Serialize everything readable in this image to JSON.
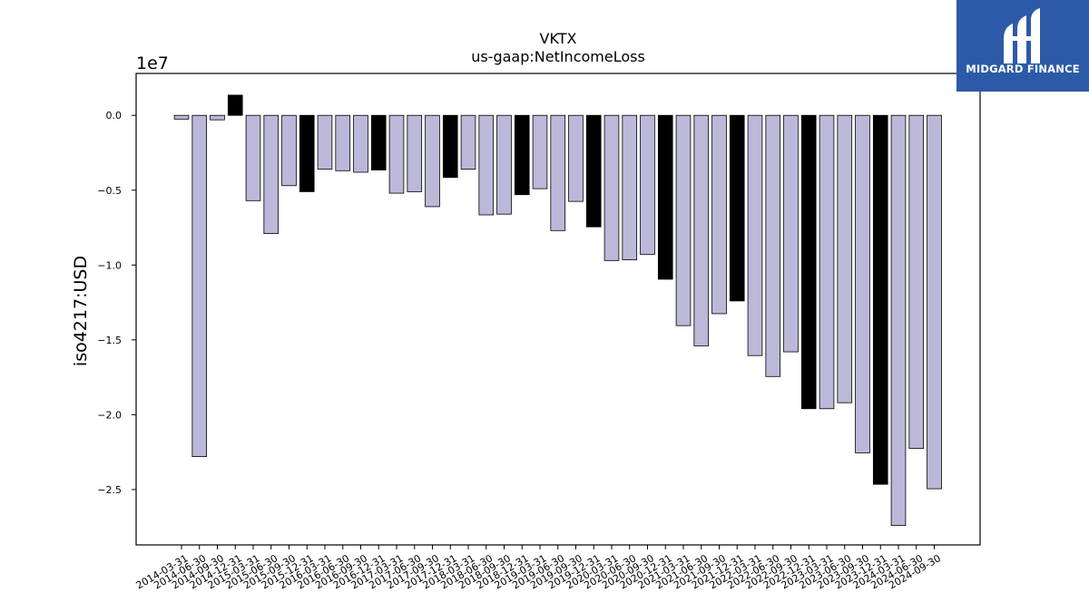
{
  "brand": {
    "name": "MIDGARD FINANCE",
    "color": "#2c5aa8"
  },
  "chart_data": {
    "type": "bar",
    "title": "VKTX",
    "subtitle": "us-gaap:NetIncomeLoss",
    "ylabel": "iso4217:USD",
    "xlabel": "",
    "offset_label": "1e7",
    "scale": 10000000,
    "ylim": [
      -28700000.0,
      2800000.0
    ],
    "yticks": [
      0.0,
      -0.5,
      -1.0,
      -1.5,
      -2.0,
      -2.5
    ],
    "ytick_labels": [
      "0.0",
      "−0.5",
      "−1.0",
      "−1.5",
      "−2.0",
      "−2.5"
    ],
    "grid": false,
    "colors": {
      "bar": "#bcb8d9",
      "highlight": "#000000",
      "edge": "#000000"
    },
    "categories": [
      "2014-03-31",
      "2014-06-30",
      "2014-09-30",
      "2014-12-31",
      "2015-03-31",
      "2015-06-30",
      "2015-09-30",
      "2015-12-31",
      "2016-03-31",
      "2016-06-30",
      "2016-09-30",
      "2016-12-31",
      "2017-03-31",
      "2017-06-30",
      "2017-09-30",
      "2017-12-31",
      "2018-03-31",
      "2018-06-30",
      "2018-09-30",
      "2018-12-31",
      "2019-03-31",
      "2019-06-30",
      "2019-09-30",
      "2019-12-31",
      "2020-03-31",
      "2020-06-30",
      "2020-09-30",
      "2020-12-31",
      "2021-03-31",
      "2021-06-30",
      "2021-09-30",
      "2021-12-31",
      "2022-03-31",
      "2022-06-30",
      "2022-09-30",
      "2022-12-31",
      "2023-03-31",
      "2023-06-30",
      "2023-09-30",
      "2023-12-31",
      "2024-03-31",
      "2024-06-30",
      "2024-09-30"
    ],
    "values": [
      -250000,
      -22800000,
      -300000,
      1350000,
      -5700000,
      -7900000,
      -4700000,
      -5100000,
      -3600000,
      -3700000,
      -3800000,
      -3650000,
      -5200000,
      -5100000,
      -6100000,
      -4150000,
      -3600000,
      -6650000,
      -6600000,
      -5300000,
      -4900000,
      -7700000,
      -5750000,
      -7450000,
      -9700000,
      -9650000,
      -9300000,
      -10950000,
      -14050000,
      -15400000,
      -13250000,
      -12400000,
      -16050000,
      -17450000,
      -15800000,
      -19600000,
      -19600000,
      -19200000,
      -22550000,
      -24650000,
      -27400000,
      -22250000,
      -24950000
    ],
    "highlighted": [
      false,
      false,
      false,
      true,
      false,
      false,
      false,
      true,
      false,
      false,
      false,
      true,
      false,
      false,
      false,
      true,
      false,
      false,
      false,
      true,
      false,
      false,
      false,
      true,
      false,
      false,
      false,
      true,
      false,
      false,
      false,
      true,
      false,
      false,
      false,
      true,
      false,
      false,
      false,
      true,
      false,
      false,
      false
    ]
  }
}
